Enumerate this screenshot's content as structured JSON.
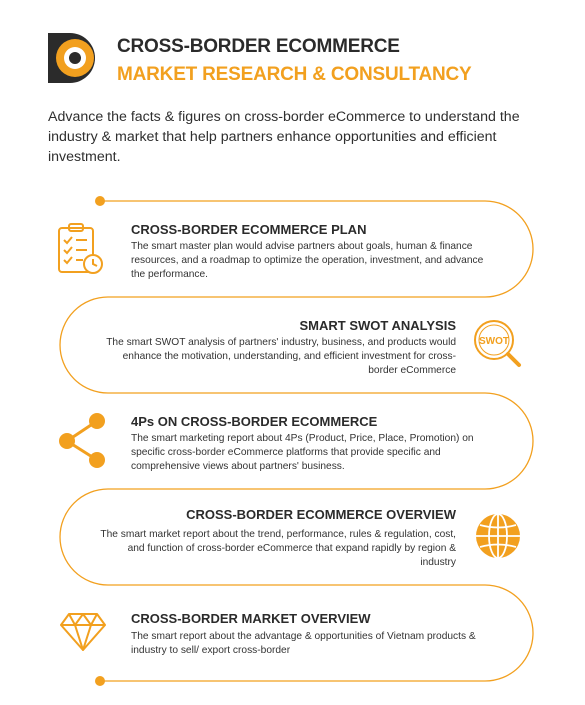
{
  "header": {
    "title_line1": "CROSS-BORDER ECOMMERCE",
    "title_line2": "MARKET RESEARCH & CONSULTANCY",
    "accent_color": "#f2a01f",
    "dark_color": "#2b2b2b"
  },
  "intro": "Advance the facts & figures on cross-border eCommerce to understand the industry & market that help partners enhance opportunities and efficient investment.",
  "sections": [
    {
      "title": "CROSS-BORDER ECOMMERCE PLAN",
      "text": "The smart master plan would advise partners about goals, human & finance resources, and a roadmap to optimize the operation, investment, and advance the performance.",
      "icon": "checklist-clock-icon"
    },
    {
      "title": "SMART SWOT ANALYSIS",
      "text": "The smart SWOT analysis of partners' industry, business, and products would enhance the motivation, understanding, and efficient investment for cross-border eCommerce",
      "icon": "swot-magnifier-icon",
      "icon_label": "SWOT"
    },
    {
      "title": "4Ps ON CROSS-BORDER ECOMMERCE",
      "text": "The smart marketing report about 4Ps (Product, Price, Place, Promotion) on specific cross-border eCommerce platforms that provide specific and comprehensive views about partners' business.",
      "icon": "share-icon"
    },
    {
      "title": "CROSS-BORDER ECOMMERCE OVERVIEW",
      "text": "The smart market report about the trend, performance, rules & regulation, cost, and function of cross-border eCommerce that expand rapidly by region & industry",
      "icon": "globe-icon"
    },
    {
      "title": "CROSS-BORDER MARKET OVERVIEW",
      "text": "The smart report about the advantage & opportunities of Vietnam products & industry to sell/ export cross-border",
      "icon": "diamond-icon"
    }
  ]
}
